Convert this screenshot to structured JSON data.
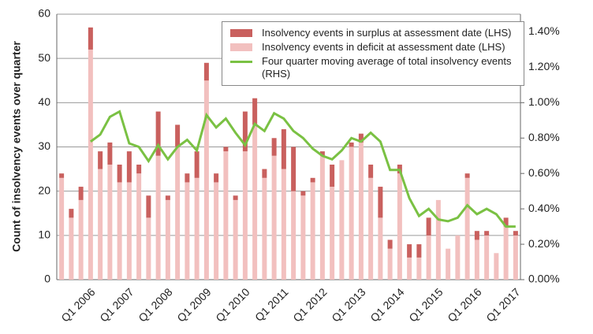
{
  "chart_data": {
    "type": "bar",
    "y_axis_title": "Count of insolvency events over quarter",
    "categories": [
      null,
      null,
      null,
      "Q1 2006",
      null,
      null,
      null,
      "Q1 2007",
      null,
      null,
      null,
      "Q1 2008",
      null,
      null,
      null,
      "Q1 2009",
      null,
      null,
      null,
      "Q1 2010",
      null,
      null,
      null,
      "Q1 2011",
      null,
      null,
      null,
      "Q1 2012",
      null,
      null,
      null,
      "Q1 2013",
      null,
      null,
      null,
      "Q1 2014",
      null,
      null,
      null,
      "Q1 2015",
      null,
      null,
      null,
      "Q1 2016",
      null,
      null,
      null,
      "Q1 2017"
    ],
    "series": [
      {
        "name": "Insolvency events in surplus at assessment date (LHS)",
        "color": "#c9605e",
        "values": [
          1,
          2,
          3,
          5,
          4,
          5,
          4,
          7,
          2,
          5,
          10,
          1,
          5,
          2,
          6,
          4,
          2,
          1,
          1,
          9,
          6,
          2,
          4,
          9,
          10,
          1,
          1,
          1,
          5,
          0,
          1,
          2,
          3,
          7,
          2,
          2,
          3,
          3,
          4,
          0,
          0,
          0,
          1,
          2,
          1,
          0,
          2,
          1
        ]
      },
      {
        "name": "Insolvency events in deficit at assessment date (LHS)",
        "color": "#f2c0bf",
        "values": [
          23,
          14,
          18,
          52,
          25,
          26,
          22,
          22,
          24,
          14,
          28,
          18,
          30,
          22,
          23,
          45,
          22,
          29,
          18,
          29,
          35,
          23,
          28,
          25,
          20,
          19,
          22,
          28,
          21,
          27,
          30,
          31,
          23,
          14,
          7,
          24,
          5,
          5,
          10,
          18,
          7,
          10,
          23,
          9,
          10,
          6,
          12,
          10
        ]
      },
      {
        "name": "Four quarter moving average of total insolvency events (RHS)",
        "color": "#7ac143",
        "type": "line",
        "axis": "y2",
        "values": [
          null,
          null,
          null,
          0.78,
          0.82,
          0.92,
          0.95,
          0.77,
          0.75,
          0.67,
          0.76,
          0.68,
          0.75,
          0.79,
          0.73,
          0.93,
          0.86,
          0.91,
          0.83,
          0.76,
          0.88,
          0.84,
          0.94,
          0.91,
          0.84,
          0.8,
          0.74,
          0.7,
          0.68,
          0.73,
          0.8,
          0.78,
          0.83,
          0.78,
          0.62,
          0.62,
          0.46,
          0.36,
          0.4,
          0.34,
          0.33,
          0.35,
          0.42,
          0.37,
          0.4,
          0.37,
          0.3,
          0.3
        ]
      }
    ],
    "ylim": [
      0,
      60
    ],
    "yticks": [
      0,
      10,
      20,
      30,
      40,
      50,
      60
    ],
    "y2lim": [
      0,
      1.5
    ],
    "y2ticks": [
      {
        "value": 0,
        "label": "0.00%"
      },
      {
        "value": 0.2,
        "label": "0.20%"
      },
      {
        "value": 0.4,
        "label": "0.40%"
      },
      {
        "value": 0.6,
        "label": "0.60%"
      },
      {
        "value": 0.8,
        "label": "0.80%"
      },
      {
        "value": 1.0,
        "label": "1.00%"
      },
      {
        "value": 1.2,
        "label": "1.20%"
      },
      {
        "value": 1.4,
        "label": "1.40%"
      }
    ],
    "grid": true
  }
}
